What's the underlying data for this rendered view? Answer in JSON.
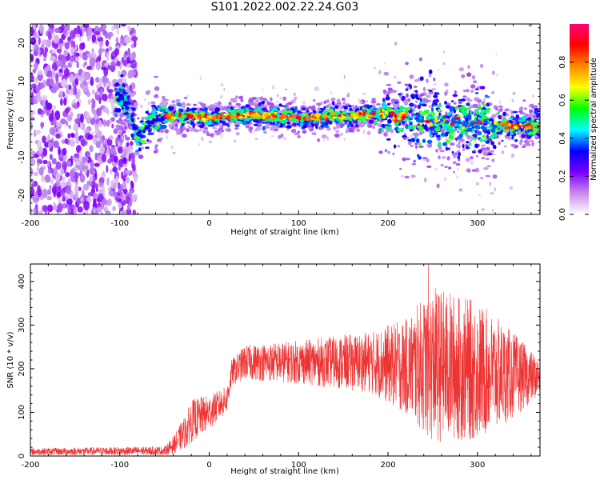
{
  "figure": {
    "title": "S101.2022.002.22.24.G03"
  },
  "chart_data": [
    {
      "type": "heatmap",
      "title": "",
      "xlabel": "Height of straight line (km)",
      "ylabel": "Frequency (Hz)",
      "xlim": [
        -200,
        370
      ],
      "ylim": [
        -25,
        25
      ],
      "x_ticks": [
        -200,
        -100,
        0,
        100,
        200,
        300
      ],
      "x_tick_labels": [
        "-200",
        "-100",
        "0",
        "100",
        "200",
        "300"
      ],
      "y_ticks": [
        -20,
        -10,
        0,
        10,
        20
      ],
      "y_tick_labels": [
        "-20",
        "-10",
        "0",
        "10",
        "20"
      ],
      "colorbar": {
        "label": "Normalized spectral amplitude",
        "range": [
          0.0,
          1.0
        ],
        "ticks": [
          0.0,
          0.2,
          0.4,
          0.6,
          0.8
        ],
        "tick_labels": [
          "0.0",
          "0.2",
          "0.4",
          "0.6",
          "0.8"
        ],
        "colormap": [
          "#ffffff",
          "#ddbbee",
          "#b277ee",
          "#8800ff",
          "#0000ff",
          "#00ddff",
          "#00ff55",
          "#88ff00",
          "#ffff00",
          "#ff8800",
          "#ff0000",
          "#ff0088"
        ]
      },
      "signal_track": [
        {
          "x": -100,
          "f": 6
        },
        {
          "x": -90,
          "f": 3
        },
        {
          "x": -80,
          "f": -5
        },
        {
          "x": -70,
          "f": -2
        },
        {
          "x": -60,
          "f": 0
        },
        {
          "x": -50,
          "f": 0.8
        },
        {
          "x": 0,
          "f": 0.5
        },
        {
          "x": 50,
          "f": 1.2
        },
        {
          "x": 100,
          "f": 0.5
        },
        {
          "x": 150,
          "f": 0.8
        },
        {
          "x": 200,
          "f": 1.5
        },
        {
          "x": 250,
          "f": -0.5
        },
        {
          "x": 300,
          "f": -1.5
        },
        {
          "x": 370,
          "f": -1.8
        }
      ],
      "grid": false
    },
    {
      "type": "line",
      "title": "",
      "xlabel": "Height of straight line (km)",
      "ylabel": "SNR (10 * v/v)",
      "xlim": [
        -200,
        370
      ],
      "ylim": [
        0,
        440
      ],
      "x_ticks": [
        -200,
        -100,
        0,
        100,
        200,
        300
      ],
      "x_tick_labels": [
        "-200",
        "-100",
        "0",
        "100",
        "200",
        "300"
      ],
      "y_ticks": [
        0,
        100,
        200,
        300,
        400
      ],
      "y_tick_labels": [
        "0",
        "100",
        "200",
        "300",
        "400"
      ],
      "series": [
        {
          "color": "#ee3333",
          "envelope": [
            {
              "x": -200,
              "mean": 10,
              "amp": 8
            },
            {
              "x": -50,
              "mean": 12,
              "amp": 10
            },
            {
              "x": -40,
              "mean": 25,
              "amp": 20
            },
            {
              "x": -25,
              "mean": 60,
              "amp": 40
            },
            {
              "x": -20,
              "mean": 80,
              "amp": 50
            },
            {
              "x": 0,
              "mean": 100,
              "amp": 40
            },
            {
              "x": 20,
              "mean": 130,
              "amp": 30
            },
            {
              "x": 25,
              "mean": 190,
              "amp": 30
            },
            {
              "x": 40,
              "mean": 215,
              "amp": 40
            },
            {
              "x": 100,
              "mean": 215,
              "amp": 50
            },
            {
              "x": 180,
              "mean": 215,
              "amp": 70
            },
            {
              "x": 220,
              "mean": 205,
              "amp": 110
            },
            {
              "x": 250,
              "mean": 210,
              "amp": 180
            },
            {
              "x": 300,
              "mean": 195,
              "amp": 160
            },
            {
              "x": 340,
              "mean": 185,
              "amp": 100
            },
            {
              "x": 370,
              "mean": 180,
              "amp": 40
            }
          ],
          "peak": {
            "x": 245,
            "y": 440
          }
        }
      ],
      "grid": false
    }
  ]
}
